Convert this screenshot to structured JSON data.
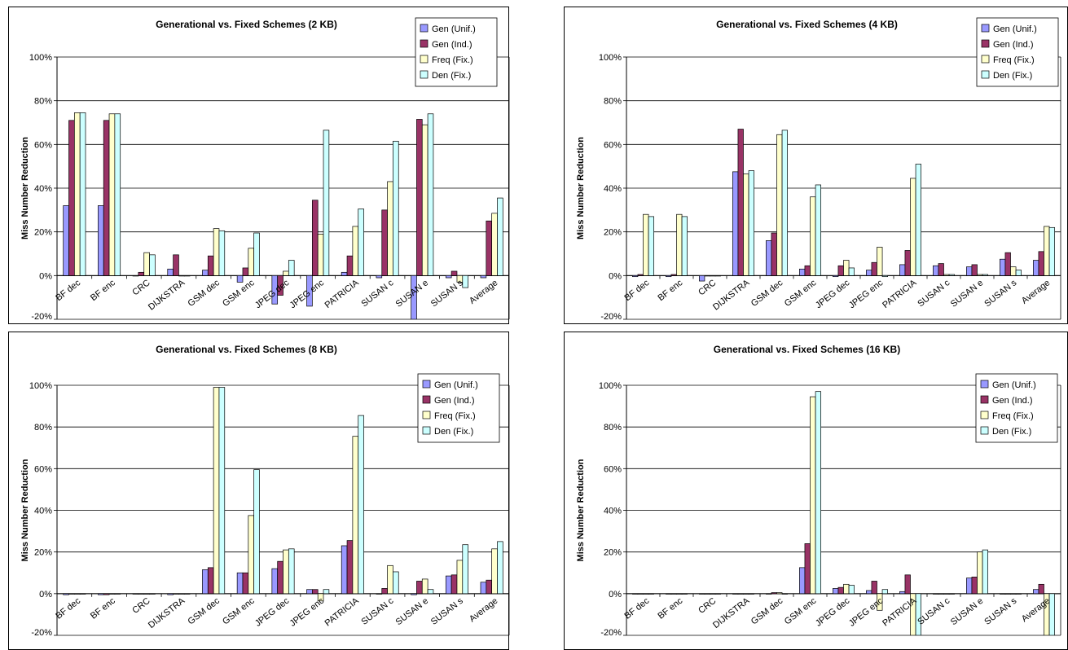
{
  "chart_data": [
    {
      "type": "bar",
      "title": "Generational vs. Fixed Schemes (2 KB)",
      "ylabel": "Miss Number Reduction",
      "xlabel": "",
      "ylim": [
        -0.2,
        1.0
      ],
      "yticks": [
        "-20%",
        "0%",
        "20%",
        "40%",
        "60%",
        "80%",
        "100%"
      ],
      "categories": [
        "BF dec",
        "BF enc",
        "CRC",
        "DIJKSTRA",
        "GSM dec",
        "GSM enc",
        "JPEG dec",
        "JPEG enc",
        "PATRICIA",
        "SUSAN c",
        "SUSAN e",
        "SUSAN s",
        "Average"
      ],
      "grid": true,
      "legend_position": "top-right",
      "series": [
        {
          "name": "Gen (Unif.)",
          "values": [
            0.32,
            0.32,
            0.0,
            0.03,
            0.025,
            -0.03,
            -0.13,
            -0.14,
            0.015,
            -0.01,
            -0.2,
            -0.01,
            -0.01
          ]
        },
        {
          "name": "Gen (Ind.)",
          "values": [
            0.71,
            0.71,
            0.015,
            0.095,
            0.09,
            0.035,
            -0.09,
            0.345,
            0.09,
            0.3,
            0.715,
            0.02,
            0.25
          ]
        },
        {
          "name": "Freq (Fix.)",
          "values": [
            0.745,
            0.74,
            0.105,
            0.0,
            0.215,
            0.125,
            0.02,
            0.19,
            0.225,
            0.43,
            0.69,
            -0.03,
            0.285
          ]
        },
        {
          "name": "Den (Fix.)",
          "values": [
            0.745,
            0.74,
            0.095,
            0.0,
            0.205,
            0.195,
            0.07,
            0.665,
            0.305,
            0.615,
            0.74,
            -0.055,
            0.355
          ]
        }
      ]
    },
    {
      "type": "bar",
      "title": "Generational vs. Fixed Schemes (4 KB)",
      "ylabel": "Miss Number Reduction",
      "xlabel": "",
      "ylim": [
        -0.2,
        1.0
      ],
      "yticks": [
        "-20%",
        "0%",
        "20%",
        "40%",
        "60%",
        "80%",
        "100%"
      ],
      "categories": [
        "BF dec",
        "BF enc",
        "CRC",
        "DIJKSTRA",
        "GSM dec",
        "GSM enc",
        "JPEG dec",
        "JPEG enc",
        "PATRICIA",
        "SUSAN c",
        "SUSAN e",
        "SUSAN s",
        "Average"
      ],
      "grid": true,
      "legend_position": "top-right",
      "series": [
        {
          "name": "Gen (Unif.)",
          "values": [
            -0.005,
            -0.005,
            -0.025,
            0.475,
            0.16,
            0.03,
            -0.005,
            0.025,
            0.05,
            0.045,
            0.04,
            0.075,
            0.07
          ]
        },
        {
          "name": "Gen (Ind.)",
          "values": [
            0.005,
            0.005,
            0.0,
            0.67,
            0.195,
            0.045,
            0.045,
            0.06,
            0.115,
            0.055,
            0.05,
            0.105,
            0.11
          ]
        },
        {
          "name": "Freq (Fix.)",
          "values": [
            0.28,
            0.28,
            0.0,
            0.465,
            0.645,
            0.36,
            0.07,
            0.13,
            0.445,
            0.005,
            0.005,
            0.04,
            0.225
          ]
        },
        {
          "name": "Den (Fix.)",
          "values": [
            0.27,
            0.27,
            0.0,
            0.48,
            0.665,
            0.415,
            0.035,
            -0.005,
            0.51,
            0.005,
            0.005,
            0.025,
            0.22
          ]
        }
      ]
    },
    {
      "type": "bar",
      "title": "Generational vs. Fixed Schemes (8 KB)",
      "ylabel": "Miss Number Reduction",
      "xlabel": "",
      "ylim": [
        -0.2,
        1.0
      ],
      "yticks": [
        "-20%",
        "0%",
        "20%",
        "40%",
        "60%",
        "80%",
        "100%"
      ],
      "categories": [
        "BF dec",
        "BF enc",
        "CRC",
        "DIJKSTRA",
        "GSM dec",
        "GSM enc",
        "JPEG dec",
        "JPEG enc",
        "PATRICIA",
        "SUSAN c",
        "SUSAN e",
        "SUSAN s",
        "Average"
      ],
      "grid": true,
      "legend_position": "top-right",
      "series": [
        {
          "name": "Gen (Unif.)",
          "values": [
            -0.005,
            -0.005,
            0.0,
            -0.005,
            0.115,
            0.1,
            0.12,
            0.02,
            0.23,
            0.0,
            -0.005,
            0.085,
            0.055
          ]
        },
        {
          "name": "Gen (Ind.)",
          "values": [
            0.0,
            -0.005,
            0.0,
            0.0,
            0.125,
            0.1,
            0.155,
            0.02,
            0.255,
            0.025,
            0.06,
            0.09,
            0.065
          ]
        },
        {
          "name": "Freq (Fix.)",
          "values": [
            0.0,
            0.0,
            0.0,
            0.0,
            0.99,
            0.375,
            0.21,
            -0.035,
            0.755,
            0.135,
            0.07,
            0.16,
            0.215
          ]
        },
        {
          "name": "Den (Fix.)",
          "values": [
            0.0,
            0.0,
            0.0,
            0.0,
            0.99,
            0.595,
            0.215,
            0.02,
            0.855,
            0.105,
            0.02,
            0.235,
            0.25
          ]
        }
      ]
    },
    {
      "type": "bar",
      "title": "Generational vs. Fixed Schemes (16 KB)",
      "ylabel": "Miss Number Reduction",
      "xlabel": "",
      "ylim": [
        -0.2,
        1.0
      ],
      "yticks": [
        "-20%",
        "0%",
        "20%",
        "40%",
        "60%",
        "80%",
        "100%"
      ],
      "categories": [
        "BF dec",
        "BF enc",
        "CRC",
        "DIJKSTRA",
        "GSM dec",
        "GSM enc",
        "JPEG dec",
        "JPEG enc",
        "PATRICIA",
        "SUSAN c",
        "SUSAN e",
        "SUSAN s",
        "Average"
      ],
      "grid": true,
      "legend_position": "top-right",
      "series": [
        {
          "name": "Gen (Unif.)",
          "values": [
            0.0,
            0.0,
            0.0,
            0.0,
            0.0,
            0.125,
            0.025,
            0.015,
            0.01,
            0.0,
            0.075,
            0.0,
            0.02
          ]
        },
        {
          "name": "Gen (Ind.)",
          "values": [
            0.0,
            0.0,
            0.0,
            0.0,
            0.005,
            0.24,
            0.03,
            0.06,
            0.09,
            0.0,
            0.08,
            0.0,
            0.045
          ]
        },
        {
          "name": "Freq (Fix.)",
          "values": [
            0.0,
            0.0,
            0.0,
            0.0,
            0.005,
            0.945,
            0.045,
            -0.08,
            -0.2,
            0.0,
            0.2,
            0.0,
            -0.2
          ]
        },
        {
          "name": "Den (Fix.)",
          "values": [
            0.0,
            0.0,
            0.0,
            0.0,
            0.0,
            0.97,
            0.04,
            0.02,
            -0.2,
            0.0,
            0.21,
            0.0,
            -0.2
          ]
        }
      ]
    }
  ],
  "colors": {
    "Gen (Unif.)": "#9999ff",
    "Gen (Ind.)": "#993366",
    "Freq (Fix.)": "#ffffcc",
    "Den (Fix.)": "#ccffff",
    "frame": "#000000",
    "grid": "#000000"
  }
}
